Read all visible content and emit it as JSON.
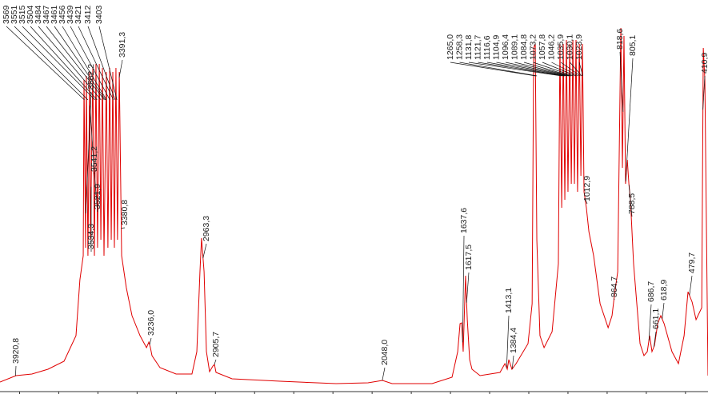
{
  "chart_data": {
    "type": "line",
    "color": "#e00000",
    "xlim": [
      4000,
      385
    ],
    "ylim": [
      0,
      490
    ],
    "xticks": [
      3900,
      3700,
      3500,
      3300,
      3100,
      2900,
      2700,
      2500,
      2300,
      2100,
      1900,
      1700,
      1500,
      1300,
      1100,
      900,
      700,
      500
    ],
    "x": [
      4000,
      3918,
      3837,
      3755,
      3673,
      3612,
      3592,
      3575,
      3571,
      3563,
      3559,
      3551,
      3542,
      3538,
      3526,
      3518,
      3510,
      3502,
      3493,
      3485,
      3477,
      3469,
      3457,
      3449,
      3440,
      3432,
      3424,
      3416,
      3408,
      3400,
      3391,
      3379,
      3355,
      3326,
      3285,
      3252,
      3240,
      3232,
      3224,
      3183,
      3101,
      3020,
      2995,
      2979,
      2971,
      2958,
      2946,
      2930,
      2913,
      2905,
      2897,
      2815,
      2570,
      2284,
      2121,
      2047,
      1998,
      1794,
      1692,
      1663,
      1651,
      1643,
      1635,
      1623,
      1614,
      1602,
      1590,
      1549,
      1447,
      1422,
      1410,
      1402,
      1386,
      1365,
      1304,
      1283,
      1275,
      1267,
      1259,
      1243,
      1222,
      1181,
      1149,
      1141,
      1132,
      1124,
      1116,
      1108,
      1100,
      1091,
      1083,
      1075,
      1067,
      1059,
      1051,
      1042,
      1034,
      1026,
      1018,
      1006,
      993,
      969,
      936,
      895,
      875,
      863,
      846,
      830,
      822,
      814,
      806,
      797,
      789,
      781,
      765,
      732,
      712,
      695,
      683,
      671,
      658,
      642,
      626,
      609,
      569,
      536,
      507,
      487,
      466,
      446,
      417,
      409,
      401,
      385
    ],
    "values": [
      12,
      20,
      22,
      28,
      38,
      70,
      140,
      170,
      390,
      180,
      395,
      170,
      400,
      190,
      405,
      170,
      410,
      180,
      410,
      190,
      405,
      170,
      400,
      180,
      405,
      190,
      400,
      180,
      405,
      190,
      400,
      170,
      130,
      95,
      70,
      55,
      62,
      55,
      45,
      30,
      22,
      22,
      50,
      150,
      192,
      150,
      50,
      25,
      32,
      34,
      24,
      16,
      13,
      10,
      11,
      14,
      10,
      10,
      18,
      50,
      85,
      86,
      50,
      145,
      90,
      40,
      28,
      20,
      24,
      35,
      28,
      40,
      28,
      35,
      60,
      110,
      430,
      435,
      190,
      70,
      55,
      75,
      160,
      435,
      230,
      435,
      240,
      440,
      250,
      435,
      260,
      440,
      260,
      440,
      250,
      435,
      270,
      435,
      250,
      230,
      200,
      170,
      110,
      80,
      95,
      120,
      150,
      455,
      280,
      445,
      260,
      290,
      260,
      240,
      160,
      60,
      45,
      50,
      70,
      50,
      58,
      85,
      95,
      85,
      50,
      35,
      70,
      125,
      112,
      90,
      105,
      430,
      390,
      20
    ],
    "peaks": {
      "values": [
        3569,
        3551,
        3515,
        3504,
        3484,
        3467,
        3461,
        3456,
        3439,
        3421,
        3412,
        3403,
        3562.2,
        3541.2,
        3534.3,
        3521.9,
        3391.3,
        3380.8,
        3920.8,
        3236.0,
        2963.3,
        2905.7,
        2048.0,
        1637.6,
        1617.5,
        1413.1,
        1384.4,
        1265.0,
        1258.3,
        1131.8,
        1121.7,
        1116.6,
        1104.9,
        1096.4,
        1089.1,
        1084.8,
        1073.2,
        1057.8,
        1046.2,
        1035.9,
        1030.1,
        1023.9,
        1012.9,
        864.7,
        818.6,
        805.1,
        788.5,
        686.7,
        661.1,
        618.9,
        479.7,
        410.9
      ],
      "value_labels": [
        "3569",
        "3551",
        "3515",
        "3504",
        "3484",
        "3467",
        "3461",
        "3456",
        "3439",
        "3421",
        "3412",
        "3403",
        "3562,2",
        "3541,2",
        "3534,3",
        "3521,9",
        "3391,3",
        "3380,8",
        "3920,8",
        "3236,0",
        "2963,3",
        "2905,7",
        "2048,0",
        "1637,6",
        "1617,5",
        "1413,1",
        "1384,4",
        "1265,0",
        "1258,3",
        "1131,8",
        "1121,7",
        "1116,6",
        "1104,9",
        "1096,4",
        "1089,1",
        "1084,8",
        "1073,2",
        "1057,8",
        "1046,2",
        "1035,9",
        "1030,1",
        "1023,9",
        "1012,9",
        "864,7",
        "818,6",
        "805,1",
        "788,5",
        "686,7",
        "661,1",
        "618,9",
        "479,7",
        "410,9"
      ]
    }
  }
}
